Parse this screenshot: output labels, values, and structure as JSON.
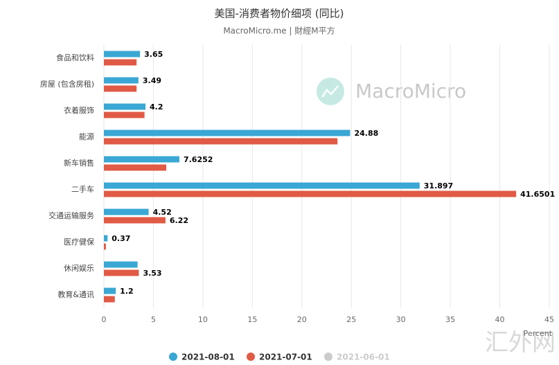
{
  "chart_data": {
    "type": "hbar",
    "title": "美国-消费者物价细项 (同比)",
    "subtitle": "MacroMicro.me | 財經M平方",
    "categories": [
      "食品和饮料",
      "房屋 (包含房租)",
      "衣着服饰",
      "能源",
      "新车销售",
      "二手车",
      "交通运输服务",
      "医疗健保",
      "休闲娱乐",
      "教育&通讯"
    ],
    "series": [
      {
        "name": "2021-08-01",
        "color": "#3aa7d4",
        "values": [
          3.65,
          3.49,
          4.2,
          24.88,
          7.6252,
          31.897,
          4.52,
          0.37,
          3.4,
          1.2
        ],
        "show_labels": [
          true,
          true,
          true,
          true,
          true,
          true,
          true,
          true,
          false,
          true
        ]
      },
      {
        "name": "2021-07-01",
        "color": "#e05a45",
        "values": [
          3.3,
          3.3,
          4.1,
          23.6,
          6.3,
          41.6501,
          6.22,
          0.2,
          3.53,
          1.1
        ],
        "show_labels": [
          false,
          false,
          false,
          false,
          false,
          true,
          true,
          false,
          true,
          false
        ]
      },
      {
        "name": "2021-06-01",
        "color": "#cccccc",
        "hidden": true,
        "values": [
          null,
          null,
          null,
          null,
          null,
          null,
          null,
          null,
          null,
          null
        ],
        "show_labels": [
          false,
          false,
          false,
          false,
          false,
          false,
          false,
          false,
          false,
          false
        ]
      }
    ],
    "xlabel": "Percent",
    "xlim": [
      0,
      45
    ],
    "xticks": [
      0,
      5,
      10,
      15,
      20,
      25,
      30,
      35,
      40,
      45
    ],
    "grid": true,
    "watermark": "MacroMicro",
    "corner_mark": "汇外网"
  }
}
